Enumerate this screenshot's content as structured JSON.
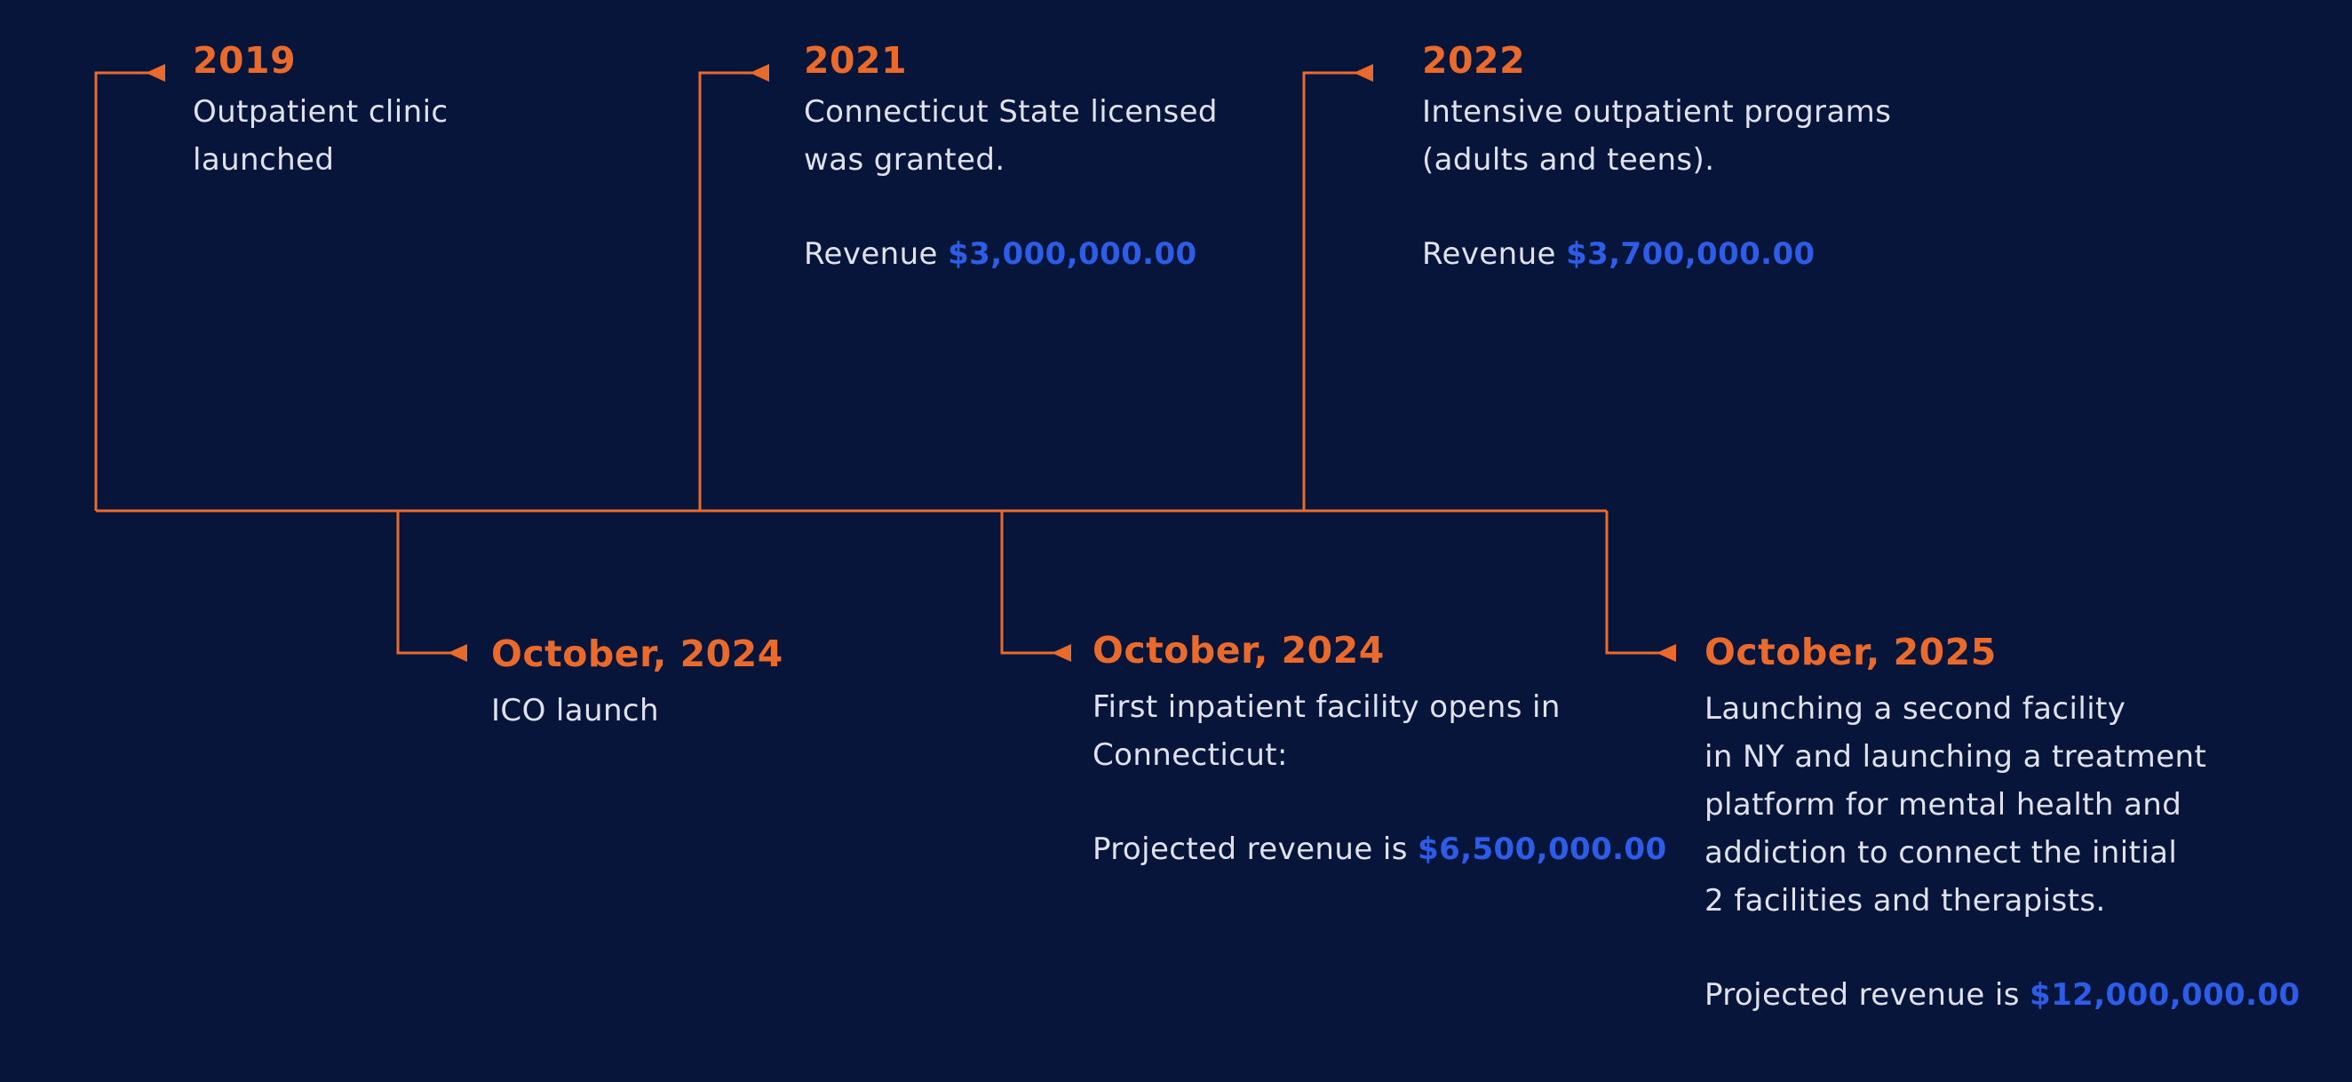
{
  "colors": {
    "background": "#07153a",
    "accent": "#ea6a2b",
    "text": "#dfe2ec",
    "amount": "#2d5ce8"
  },
  "milestones": [
    {
      "year": "2019",
      "description": "Outpatient clinic\nlaunched"
    },
    {
      "year": "2021",
      "description": "Connecticut State licensed\nwas granted.",
      "revenue_label": "Revenue",
      "revenue_value": "$3,000,000.00"
    },
    {
      "year": "2022",
      "description": "Intensive outpatient programs\n(adults and teens).",
      "revenue_label": "Revenue",
      "revenue_value": "$3,700,000.00"
    },
    {
      "year": "October, 2024",
      "description": "ICO launch"
    },
    {
      "year": "October, 2024",
      "description": "First inpatient facility opens in\nConnecticut:",
      "revenue_label": "Projected revenue is",
      "revenue_value": "$6,500,000.00"
    },
    {
      "year": "October, 2025",
      "description": "Launching a second facility\nin NY and launching a treatment\nplatform for mental health and\naddiction to connect the initial\n2 facilities and therapists.",
      "revenue_label": "Projected revenue is",
      "revenue_value": "$12,000,000.00"
    }
  ]
}
